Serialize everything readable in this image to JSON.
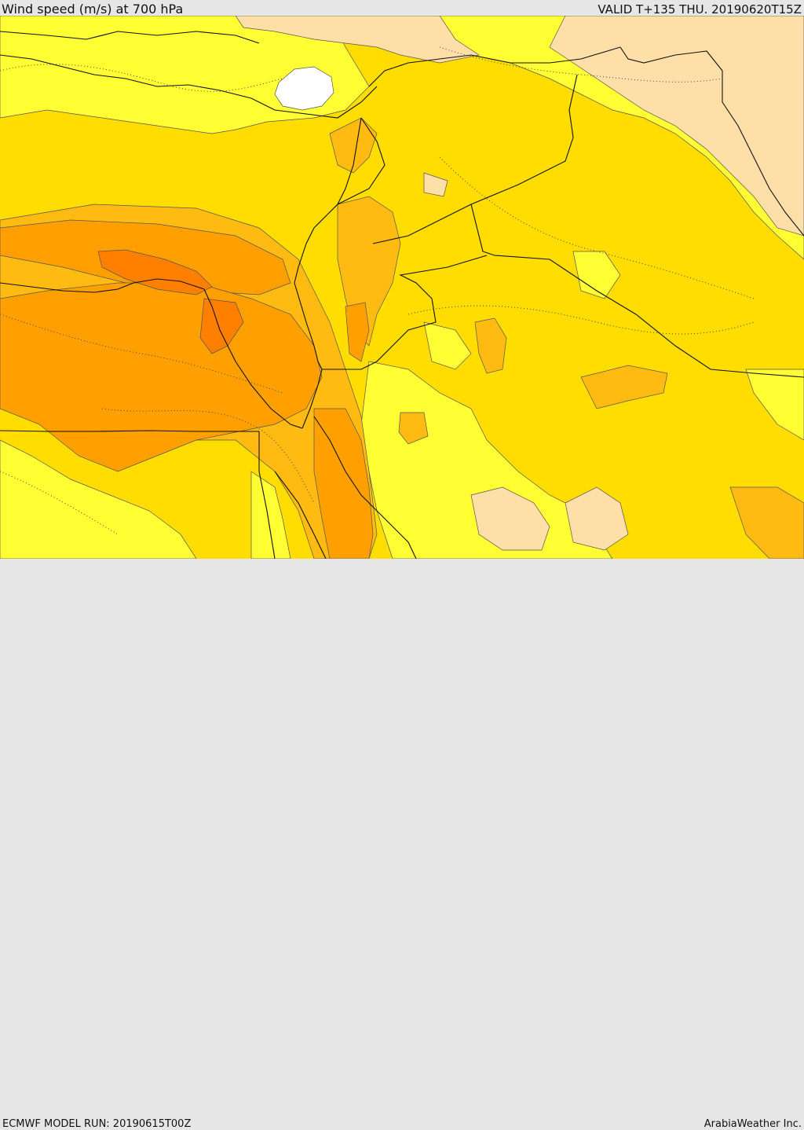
{
  "header": {
    "title": "Wind speed (m/s) at 700 hPa",
    "valid": "VALID T+135 THU. 20190620T15Z"
  },
  "footer": {
    "model_run": "ECMWF MODEL RUN: 20190615T00Z",
    "credit": "ArabiaWeather Inc."
  },
  "map": {
    "colors": {
      "calm": "#ffdfa8",
      "light": "#ffff33",
      "moderate": "#ffdd00",
      "fresh": "#ffbb11",
      "strong": "#ffa000",
      "very_strong": "#ff8000",
      "no_data": "#ffffff",
      "border": "#111111",
      "contour": "#555555"
    }
  }
}
